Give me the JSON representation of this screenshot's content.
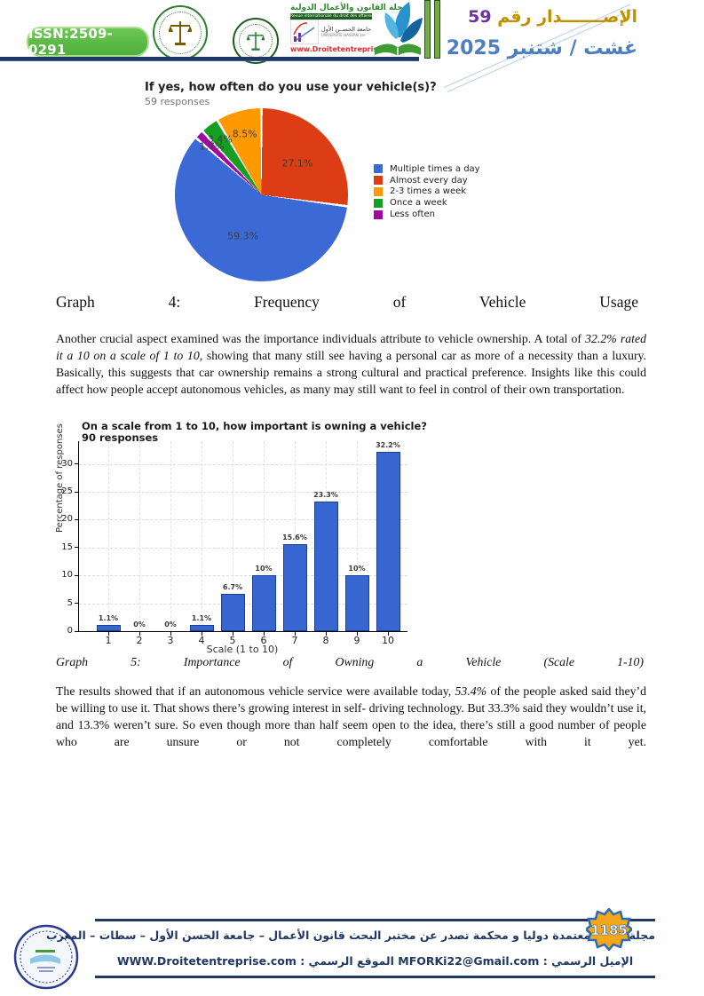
{
  "header": {
    "issn": "ISSN:2509-0291",
    "journal_title_ar": "مجلة القانون والأعمال الدولية",
    "journal_subtitle_fr": "Revue internationale du droit des affaires",
    "university_ar": "جامعة الحســن الأول",
    "university_fr": "UNIVERSITE HASSAN 1er",
    "journal_website": "www.Droitetentreprise.com",
    "issue_label_ar": "الإصـــــــدار رقم",
    "issue_number": "59",
    "issue_date_ar": "غشت / شتنبر 2025",
    "colors": {
      "navy": "#1f3864",
      "green": "#58b843",
      "gold": "#bf9000",
      "purple": "#7030a0",
      "blue": "#4d7ebf"
    }
  },
  "chart_data": [
    {
      "type": "pie",
      "title": "If yes, how often do you use your vehicle(s)?",
      "subtitle": "59 responses",
      "slices": [
        {
          "label": "Multiple times a day",
          "value": 59.3,
          "pct_label": "59.3%",
          "color": "#3b6ad6"
        },
        {
          "label": "Almost every day",
          "value": 27.1,
          "pct_label": "27.1%",
          "color": "#dc3d15"
        },
        {
          "label": "2-3 times a week",
          "value": 8.5,
          "pct_label": "8.5%",
          "color": "#ff9900"
        },
        {
          "label": "Once a week",
          "value": 3.4,
          "pct_label": "3.4%",
          "color": "#149e22"
        },
        {
          "label": "Less often",
          "value": 1.7,
          "pct_label": "1.7%",
          "color": "#a108a1"
        }
      ],
      "draw_order_clockwise_from_top": [
        1,
        0,
        4,
        3,
        2
      ],
      "legend_position": "right"
    },
    {
      "type": "bar",
      "title": "On a scale from 1 to 10, how important is owning a vehicle?",
      "subtitle": "90 responses",
      "categories": [
        "1",
        "2",
        "3",
        "4",
        "5",
        "6",
        "7",
        "8",
        "9",
        "10"
      ],
      "values": [
        1.1,
        0,
        0,
        1.1,
        6.7,
        10,
        15.6,
        23.3,
        10,
        32.2
      ],
      "bar_labels": [
        "1.1%",
        "0%",
        "0%",
        "1.1%",
        "6.7%",
        "10%",
        "15.6%",
        "23.3%",
        "10%",
        "32.2%"
      ],
      "xlabel": "Scale (1 to 10)",
      "ylabel": "Percentage of responses",
      "yticks": [
        0,
        5,
        10,
        15,
        20,
        25,
        30
      ],
      "ylim": [
        0,
        34.1
      ],
      "grid": "dashed",
      "bar_color": "#3766d1"
    }
  ],
  "captions": {
    "graph4": "Graph 4: Frequency of Vehicle Usage",
    "graph5": "Graph 5: Importance of Owning a Vehicle (Scale 1-10)"
  },
  "paragraphs": {
    "p1": [
      {
        "t": "Another crucial aspect examined was the importance individuals attribute to vehicle ownership. A total of ",
        "i": false
      },
      {
        "t": "32.2% rated it a 10 on a scale of 1 to 10,",
        "i": true
      },
      {
        "t": " showing that many still see having a personal car as more of a necessity than a luxury. Basically, this suggests that car ownership remains a strong cultural and practical preference. Insights like this could affect how people accept autonomous vehicles, as many may still want to feel in control of their own transportation.",
        "i": false
      }
    ],
    "p2": [
      {
        "t": "The results showed that if an autonomous vehicle service were available today, ",
        "i": false
      },
      {
        "t": "53.4%",
        "i": true
      },
      {
        "t": " of the people asked said they’d be willing to use it. That shows there’s growing interest in self- driving technology. But 33.3% said they wouldn’t use it, and 13.3% weren’t sure. So even though more than half seem open to the idea, there’s still a good number of people who are unsure or not completely comfortable with it yet.",
        "i": false
      }
    ]
  },
  "footer": {
    "line1_ar": "مجلة علمية معتمدة  دوليا و محكمة تصدر عن مختبر البحث قانون الأعمال – جامعة الحسن الأول – سطات – المغرب",
    "email_label_ar": "الإميل الرسمي : ",
    "email": "MFORKi22@Gmail.com",
    "site_label_ar": " الموقع الرسمي : ",
    "website": "WWW.Droitetentreprise.com",
    "page_number": "1185"
  }
}
